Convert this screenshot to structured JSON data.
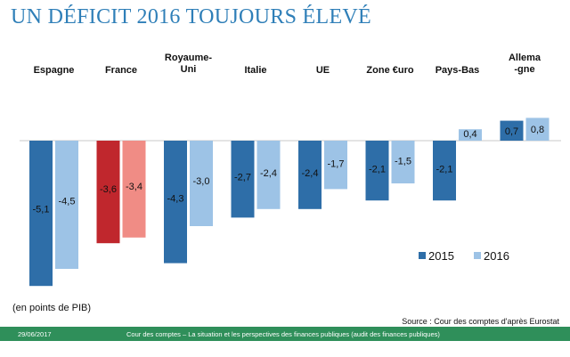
{
  "header": {
    "title": "UN DÉFICIT 2016 TOUJOURS ÉLEVÉ"
  },
  "chart_data": {
    "type": "bar",
    "title": "UN DÉFICIT 2016 TOUJOURS ÉLEVÉ",
    "categories": [
      "Espagne",
      "France",
      "Royaume-\nUni",
      "Italie",
      "UE",
      "Zone €uro",
      "Pays-Bas",
      "Allema\n-gne"
    ],
    "series": [
      {
        "name": "2015",
        "values": [
          -5.1,
          -3.6,
          -4.3,
          -2.7,
          -2.4,
          -2.1,
          -2.1,
          0.7
        ],
        "labels": [
          "-5,1",
          "-3,6",
          "-4,3",
          "-2,7",
          "-2,4",
          "-2,1",
          "-2,1",
          "0,7"
        ],
        "color": "#2e6ea8"
      },
      {
        "name": "2016",
        "values": [
          -4.5,
          -3.4,
          -3.0,
          -2.4,
          -1.7,
          -1.5,
          0.4,
          0.8
        ],
        "labels": [
          "-4,5",
          "-3,4",
          "-3,0",
          "-2,4",
          "-1,7",
          "-1,5",
          "0,4",
          "0,8"
        ],
        "color": "#9dc3e6"
      }
    ],
    "highlight": {
      "category_index": 1,
      "colors": [
        "#c0272d",
        "#f08c85"
      ]
    },
    "ylim": [
      -5.5,
      1.0
    ],
    "grid": false,
    "legend_position": "bottom-right",
    "unit_note": "(en points de PIB)",
    "source": "Source : Cour des comptes d'après Eurostat"
  },
  "footer": {
    "date": "29/06/2017",
    "text": "Cour des comptes – La situation et les perspectives des finances publiques (audit des finances publiques)"
  }
}
